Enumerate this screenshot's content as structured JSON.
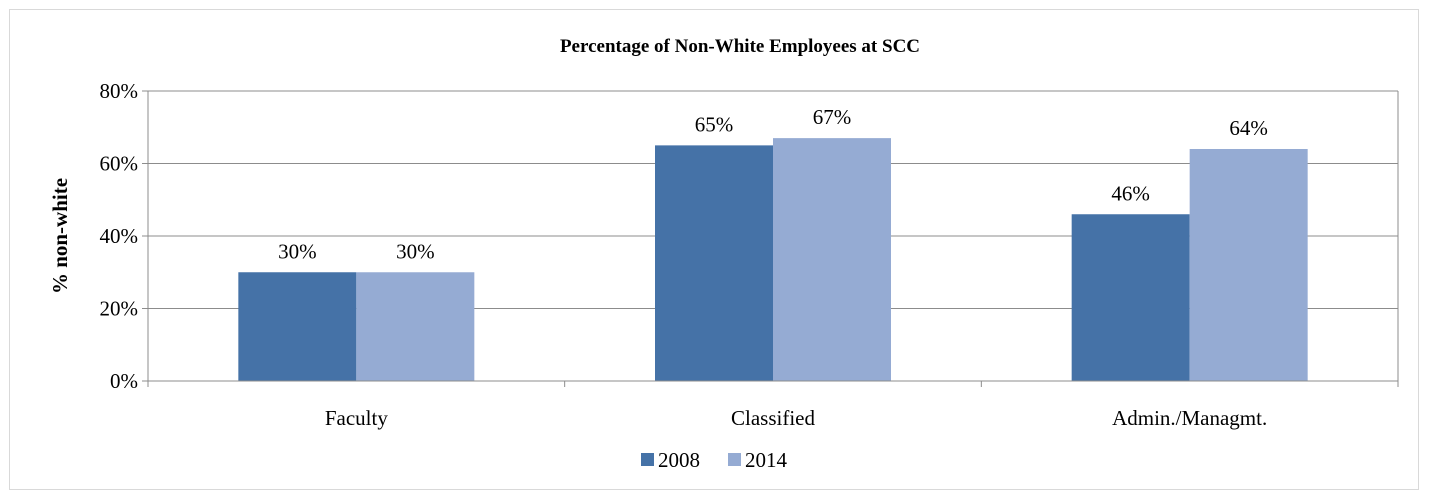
{
  "chart_data": {
    "type": "bar",
    "title": "Percentage of Non-White Employees at SCC",
    "xlabel": "",
    "ylabel": "% non-white",
    "ylim": [
      0,
      80
    ],
    "yticks": [
      "0%",
      "20%",
      "40%",
      "60%",
      "80%"
    ],
    "ytick_values": [
      0,
      20,
      40,
      60,
      80
    ],
    "grid": true,
    "legend_position": "bottom-center",
    "categories": [
      "Faculty",
      "Classified",
      "Admin./Managmt."
    ],
    "series": [
      {
        "name": "2008",
        "color": "#4572a7",
        "values": [
          30,
          65,
          46
        ],
        "data_labels": [
          "30%",
          "65%",
          "46%"
        ]
      },
      {
        "name": "2014",
        "color": "#95abd3",
        "values": [
          30,
          67,
          64
        ],
        "data_labels": [
          "30%",
          "67%",
          "64%"
        ]
      }
    ]
  }
}
